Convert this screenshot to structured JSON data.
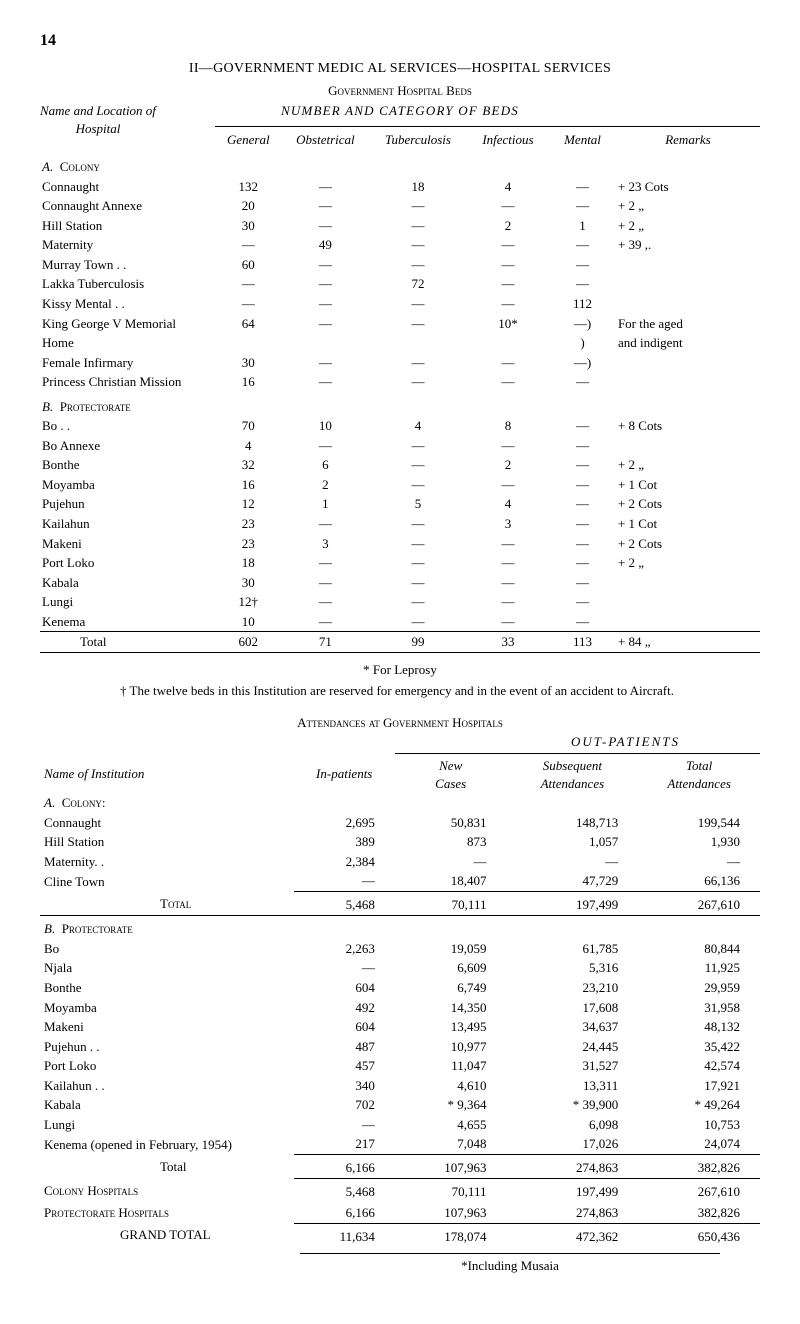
{
  "page_number": "14",
  "title_main": "II—GOVERNMENT MEDIC AL SERVICES—HOSPITAL SERVICES",
  "title_govt_beds": "Government Hospital Beds",
  "title_number_cat": "NUMBER AND CATEGORY OF BEDS",
  "left_note_top": "Name and Location of",
  "left_note_bot": "Hospital",
  "t1": {
    "cols": [
      "General",
      "Obstetrical",
      "Tuberculosis",
      "Infectious",
      "Mental",
      "Remarks"
    ],
    "secA": "A.  Colony",
    "secB": "B.  Protectorate",
    "rowsA": [
      {
        "n": "Connaught",
        "v": [
          "132",
          "—",
          "18",
          "4",
          "—"
        ],
        "r": "+ 23  Cots"
      },
      {
        "n": "Connaught Annexe",
        "v": [
          "20",
          "—",
          "—",
          "—",
          "—"
        ],
        "r": "+  2  „"
      },
      {
        "n": "Hill Station",
        "v": [
          "30",
          "—",
          "—",
          "2",
          "1"
        ],
        "r": "+  2  „"
      },
      {
        "n": "Maternity",
        "v": [
          "—",
          "49",
          "—",
          "—",
          "—"
        ],
        "r": "+ 39  ,."
      },
      {
        "n": "Murray Town . .",
        "v": [
          "60",
          "—",
          "—",
          "—",
          "—"
        ],
        "r": ""
      },
      {
        "n": "Lakka Tuberculosis",
        "v": [
          "—",
          "—",
          "72",
          "—",
          "—"
        ],
        "r": ""
      },
      {
        "n": "Kissy Mental  . .",
        "v": [
          "—",
          "—",
          "—",
          "—",
          "112"
        ],
        "r": ""
      },
      {
        "n": "King George V Memorial",
        "v": [
          "64",
          "—",
          "—",
          "10*",
          "—)"
        ],
        "r": "For the aged"
      },
      {
        "n": "    Home",
        "v": [
          "",
          "",
          "",
          "",
          ")"
        ],
        "r": "and  indigent"
      },
      {
        "n": "Female Infirmary",
        "v": [
          "30",
          "—",
          "—",
          "—",
          "—)"
        ],
        "r": ""
      },
      {
        "n": "Princess Christian Mission",
        "v": [
          "16",
          "—",
          "—",
          "—",
          "—"
        ],
        "r": ""
      }
    ],
    "rowsB": [
      {
        "n": "Bo  . .",
        "v": [
          "70",
          "10",
          "4",
          "8",
          "—"
        ],
        "r": "+  8  Cots"
      },
      {
        "n": "Bo Annexe",
        "v": [
          "4",
          "—",
          "—",
          "—",
          "—"
        ],
        "r": ""
      },
      {
        "n": "Bonthe",
        "v": [
          "32",
          "6",
          "—",
          "2",
          "—"
        ],
        "r": "+  2  „"
      },
      {
        "n": "Moyamba",
        "v": [
          "16",
          "2",
          "—",
          "—",
          "—"
        ],
        "r": "+  1  Cot"
      },
      {
        "n": "Pujehun",
        "v": [
          "12",
          "1",
          "5",
          "4",
          "—"
        ],
        "r": "+  2  Cots"
      },
      {
        "n": "Kailahun",
        "v": [
          "23",
          "—",
          "—",
          "3",
          "—"
        ],
        "r": "+  1  Cot"
      },
      {
        "n": "Makeni",
        "v": [
          "23",
          "3",
          "—",
          "—",
          "—"
        ],
        "r": "+  2  Cots"
      },
      {
        "n": "Port Loko",
        "v": [
          "18",
          "—",
          "—",
          "—",
          "—"
        ],
        "r": "+  2  „"
      },
      {
        "n": "Kabala",
        "v": [
          "30",
          "—",
          "—",
          "—",
          "—"
        ],
        "r": ""
      },
      {
        "n": "Lungi",
        "v": [
          "12†",
          "—",
          "—",
          "—",
          "—"
        ],
        "r": ""
      },
      {
        "n": "Kenema",
        "v": [
          "10",
          "—",
          "—",
          "—",
          "—"
        ],
        "r": ""
      }
    ],
    "total_label": "Total",
    "total": [
      "602",
      "71",
      "99",
      "33",
      "113",
      "+ 84  „"
    ]
  },
  "leprosy": "* For Leprosy",
  "dagger": "† The twelve beds in this Institution are reserved for emergency and in the event of an accident to Aircraft.",
  "att_title": "Attendances at Government Hospitals",
  "out_patients": "OUT-PATIENTS",
  "name_of_inst": "Name of Institution",
  "in_patients": "In-patients",
  "t2": {
    "subcols": [
      "New Cases",
      "Subsequent Attendances",
      "Total Attendances"
    ],
    "secA": "A.  Colony:",
    "rowsA": [
      {
        "n": "Connaught",
        "v": [
          "2,695",
          "50,831",
          "148,713",
          "199,544"
        ]
      },
      {
        "n": "Hill Station",
        "v": [
          "389",
          "873",
          "1,057",
          "1,930"
        ]
      },
      {
        "n": "Maternity. .",
        "v": [
          "2,384",
          "—",
          "—",
          "—"
        ]
      },
      {
        "n": "Cline Town",
        "v": [
          "—",
          "18,407",
          "47,729",
          "66,136"
        ]
      }
    ],
    "totalA_label": "Total",
    "totalA": [
      "5,468",
      "70,111",
      "197,499",
      "267,610"
    ],
    "secB": "B.  Protectorate",
    "rowsB": [
      {
        "n": "Bo",
        "v": [
          "2,263",
          "19,059",
          "61,785",
          "80,844"
        ]
      },
      {
        "n": "Njala",
        "v": [
          "—",
          "6,609",
          "5,316",
          "11,925"
        ]
      },
      {
        "n": "Bonthe",
        "v": [
          "604",
          "6,749",
          "23,210",
          "29,959"
        ]
      },
      {
        "n": "Moyamba",
        "v": [
          "492",
          "14,350",
          "17,608",
          "31,958"
        ]
      },
      {
        "n": "Makeni",
        "v": [
          "604",
          "13,495",
          "34,637",
          "48,132"
        ]
      },
      {
        "n": "Pujehun  . .",
        "v": [
          "487",
          "10,977",
          "24,445",
          "35,422"
        ]
      },
      {
        "n": "Port Loko",
        "v": [
          "457",
          "11,047",
          "31,527",
          "42,574"
        ]
      },
      {
        "n": "Kailahun . .",
        "v": [
          "340",
          "4,610",
          "13,311",
          "17,921"
        ]
      },
      {
        "n": "Kabala",
        "v": [
          "702",
          "* 9,364",
          "* 39,900",
          "* 49,264"
        ]
      },
      {
        "n": "Lungi",
        "v": [
          "—",
          "4,655",
          "6,098",
          "10,753"
        ]
      },
      {
        "n": "Kenema (opened in February, 1954)",
        "v": [
          "217",
          "7,048",
          "17,026",
          "24,074"
        ]
      }
    ],
    "totalB_label": "Total",
    "totalB": [
      "6,166",
      "107,963",
      "274,863",
      "382,826"
    ],
    "colony_hosp": "Colony Hospitals",
    "colony_hosp_v": [
      "5,468",
      "70,111",
      "197,499",
      "267,610"
    ],
    "prot_hosp": "Protectorate Hospitals",
    "prot_hosp_v": [
      "6,166",
      "107,963",
      "274,863",
      "382,826"
    ],
    "grand_total": "GRAND TOTAL",
    "grand_total_v": [
      "11,634",
      "178,074",
      "472,362",
      "650,436"
    ]
  },
  "musaia": "*Including Musaia"
}
